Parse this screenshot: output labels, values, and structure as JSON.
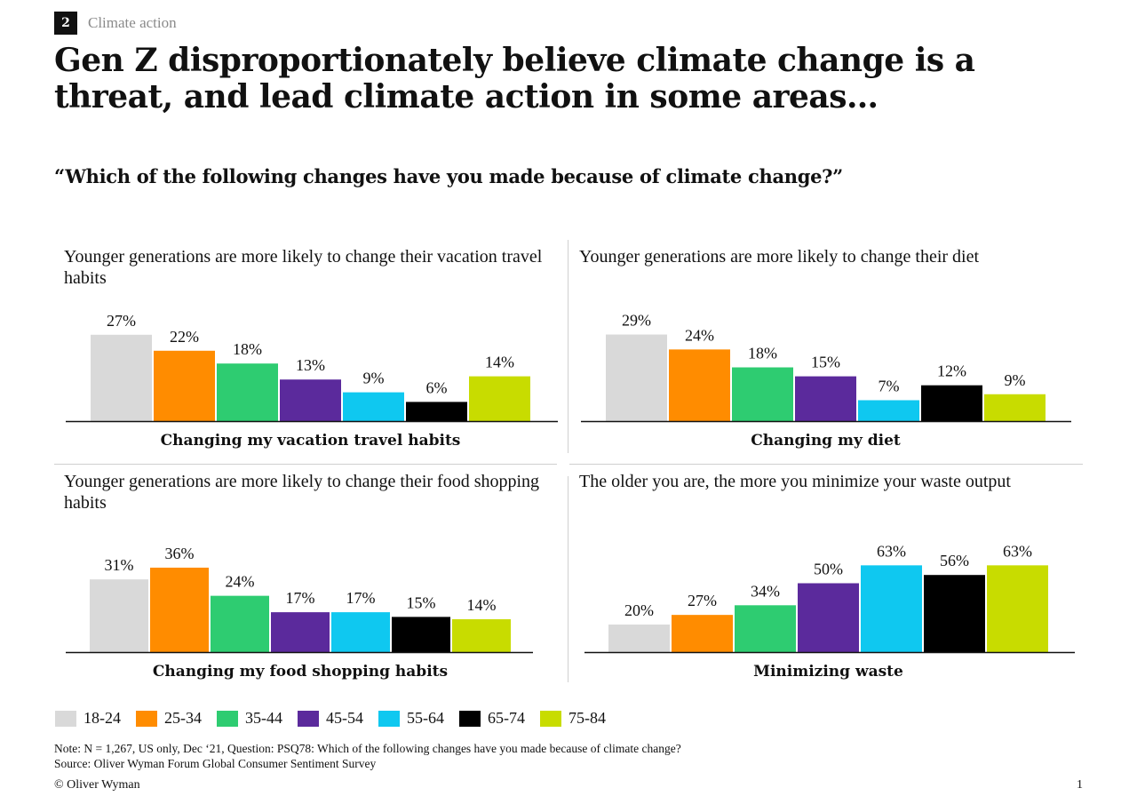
{
  "section": {
    "number": "2",
    "label": "Climate action"
  },
  "headline": "Gen Z disproportionately believe climate change is a threat, and lead climate action in some areas…",
  "question": "“Which of the following changes have you made because of climate change?”",
  "legend": [
    {
      "label": "18-24",
      "color": "#d9d9d9"
    },
    {
      "label": "25-34",
      "color": "#ff8c00"
    },
    {
      "label": "35-44",
      "color": "#2ecc71"
    },
    {
      "label": "45-54",
      "color": "#5b2a9c"
    },
    {
      "label": "55-64",
      "color": "#0fc8f0"
    },
    {
      "label": "65-74",
      "color": "#000000"
    },
    {
      "label": "75-84",
      "color": "#c8dc00"
    }
  ],
  "chart_data": [
    {
      "type": "bar",
      "subtitle": "Younger generations are more likely to change their vacation travel habits",
      "category": "Changing my vacation travel habits",
      "series": [
        "18-24",
        "25-34",
        "35-44",
        "45-54",
        "55-64",
        "65-74",
        "75-84"
      ],
      "values": [
        27,
        22,
        18,
        13,
        9,
        6,
        14
      ],
      "value_labels": [
        "27%",
        "22%",
        "18%",
        "13%",
        "9%",
        "6%",
        "14%"
      ],
      "unit": "%"
    },
    {
      "type": "bar",
      "subtitle": "Younger generations are more likely to change their diet",
      "category": "Changing my diet",
      "series": [
        "18-24",
        "25-34",
        "35-44",
        "45-54",
        "55-64",
        "65-74",
        "75-84"
      ],
      "values": [
        29,
        24,
        18,
        15,
        7,
        12,
        9
      ],
      "value_labels": [
        "29%",
        "24%",
        "18%",
        "15%",
        "7%",
        "12%",
        "9%"
      ],
      "unit": "%"
    },
    {
      "type": "bar",
      "subtitle": "Younger generations are more likely to change their food shopping habits",
      "category": "Changing my food shopping habits",
      "series": [
        "18-24",
        "25-34",
        "35-44",
        "45-54",
        "55-64",
        "65-74",
        "75-84"
      ],
      "values": [
        31,
        36,
        24,
        17,
        17,
        15,
        14
      ],
      "value_labels": [
        "31%",
        "36%",
        "24%",
        "17%",
        "17%",
        "15%",
        "14%"
      ],
      "unit": "%"
    },
    {
      "type": "bar",
      "subtitle": "The older you are, the more you minimize your waste output",
      "category": "Minimizing waste",
      "series": [
        "18-24",
        "25-34",
        "35-44",
        "45-54",
        "55-64",
        "65-74",
        "75-84"
      ],
      "values": [
        20,
        27,
        34,
        50,
        63,
        56,
        63
      ],
      "value_labels": [
        "20%",
        "27%",
        "34%",
        "50%",
        "63%",
        "56%",
        "63%"
      ],
      "unit": "%"
    }
  ],
  "notes": {
    "note": "Note: N = 1,267, US only, Dec ‘21, Question: PSQ78: Which of the following changes have you made because of climate change?",
    "source": "Source: Oliver Wyman Forum Global Consumer Sentiment Survey"
  },
  "footer": {
    "copyright": "© Oliver Wyman",
    "page": "1"
  }
}
